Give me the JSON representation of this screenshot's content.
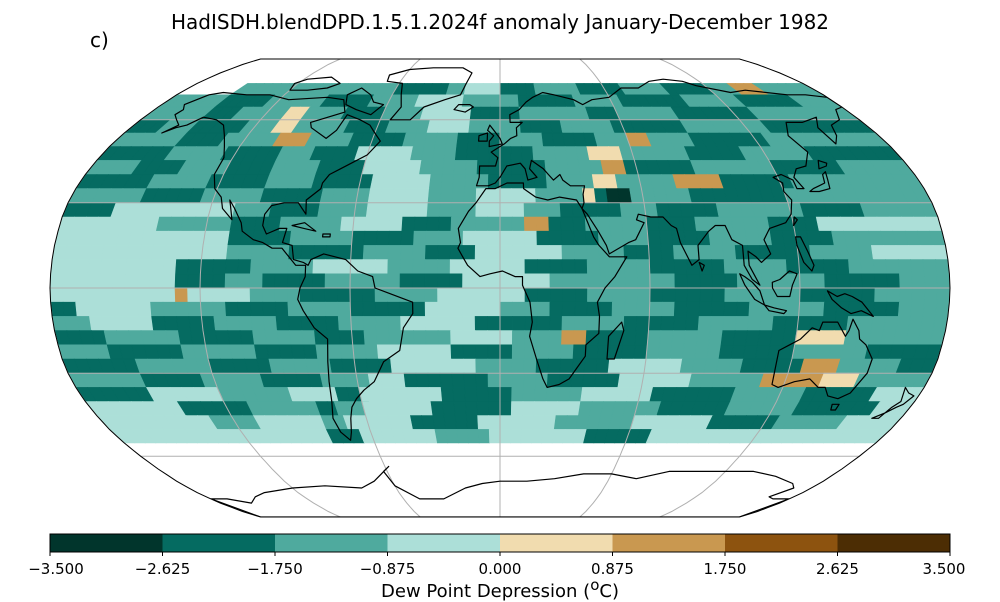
{
  "title": "HadISDH.blendDPD.1.5.1.2024f anomaly January-December 1982",
  "panel_label": "c)",
  "colorbar": {
    "label_prefix": "Dew Point Depression (",
    "label_sup": "o",
    "label_suffix": "C)",
    "ticks": [
      "−3.500",
      "−2.625",
      "−1.750",
      "−0.875",
      "0.000",
      "0.875",
      "1.750",
      "2.625",
      "3.500"
    ],
    "tick_values": [
      -3.5,
      -2.625,
      -1.75,
      -0.875,
      0,
      0.875,
      1.75,
      2.625,
      3.5
    ],
    "colors": [
      "#01352c",
      "#056b61",
      "#4faa9e",
      "#acdfd8",
      "#f1dcaf",
      "#c99850",
      "#8d530f",
      "#4c2d04"
    ]
  },
  "map": {
    "projection": "robinson",
    "gridline_color": "#b0b0b0",
    "coastline_color": "#000000"
  }
}
